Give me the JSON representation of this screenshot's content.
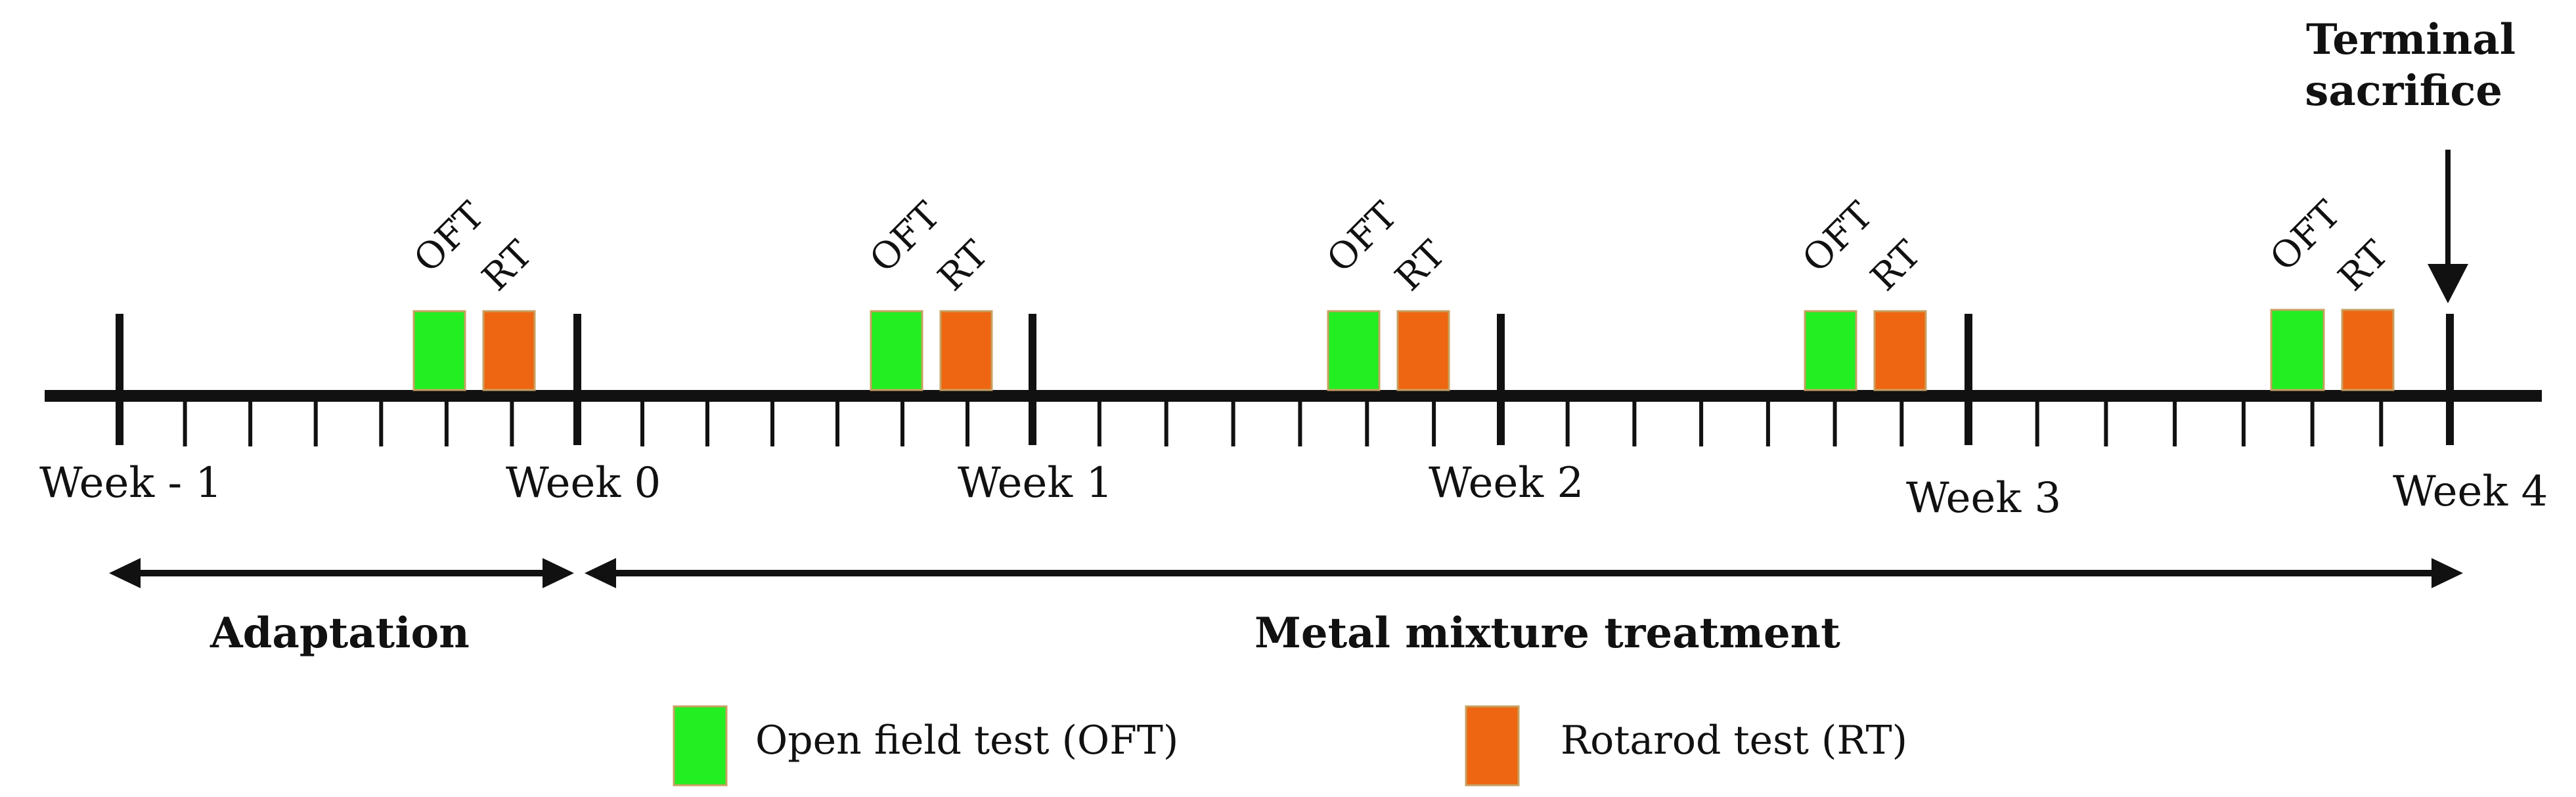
{
  "timeline": {
    "weeks": [
      "Week - 1",
      "Week 0",
      "Week 1",
      "Week 2",
      "Week 3",
      "Week 4"
    ],
    "test_labels": {
      "oft": "OFT",
      "rt": "RT"
    },
    "terminal_label": [
      "Terminal",
      "sacrifice"
    ],
    "phases": {
      "adaptation": "Adaptation",
      "treatment": "Metal mixture treatment"
    }
  },
  "legend": {
    "oft_label": "Open field test (OFT)",
    "rt_label": "Rotarod test (RT)"
  },
  "colors": {
    "line": "#111111",
    "oft": "#22ee22",
    "rt": "#ee6611",
    "box_border": "#c8a060"
  }
}
